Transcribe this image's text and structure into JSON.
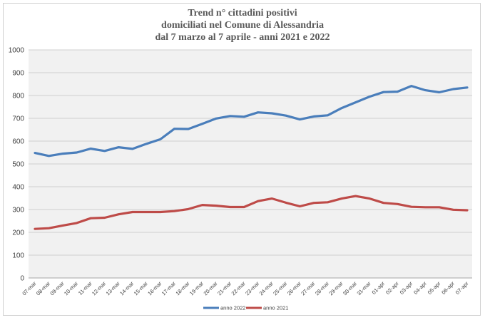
{
  "chart_data": {
    "type": "line",
    "title": "Trend n° cittadini positivi",
    "subtitle_1": "domiciliati nel Comune di Alessandria",
    "subtitle_2": "dal 7 marzo al 7 aprile - anni 2021 e 2022",
    "xlabel": "",
    "ylabel": "",
    "ylim": [
      0,
      1000
    ],
    "yticks": [
      "0",
      "100",
      "200",
      "300",
      "400",
      "500",
      "600",
      "700",
      "800",
      "900",
      "1000"
    ],
    "grid": true,
    "legend_position": "bottom",
    "categories": [
      "07-mar",
      "08-mar",
      "09-mar",
      "10-mar",
      "11-mar",
      "12-mar",
      "13-mar",
      "14-mar",
      "15-mar",
      "16-mar",
      "17-mar",
      "18-mar",
      "19-mar",
      "20-mar",
      "21-mar",
      "22-mar",
      "23-mar",
      "24-mar",
      "25-mar",
      "26-mar",
      "27-mar",
      "28-mar",
      "29-mar",
      "30-mar",
      "31-mar",
      "01-apr",
      "02-apr",
      "03-apr",
      "04-apr",
      "05-apr",
      "06-apr",
      "07-apr"
    ],
    "series": [
      {
        "name": "anno 2022",
        "color": "#4a7ebb",
        "values": [
          548,
          535,
          545,
          550,
          567,
          557,
          573,
          566,
          588,
          608,
          654,
          653,
          676,
          699,
          710,
          707,
          726,
          722,
          712,
          695,
          708,
          713,
          745,
          770,
          795,
          815,
          817,
          842,
          823,
          814,
          828,
          835
        ]
      },
      {
        "name": "anno 2021",
        "color": "#be4b48",
        "values": [
          215,
          218,
          230,
          241,
          262,
          264,
          279,
          289,
          289,
          289,
          293,
          302,
          320,
          317,
          311,
          311,
          337,
          348,
          330,
          314,
          329,
          332,
          348,
          359,
          348,
          329,
          324,
          312,
          310,
          310,
          299,
          297
        ]
      }
    ]
  }
}
